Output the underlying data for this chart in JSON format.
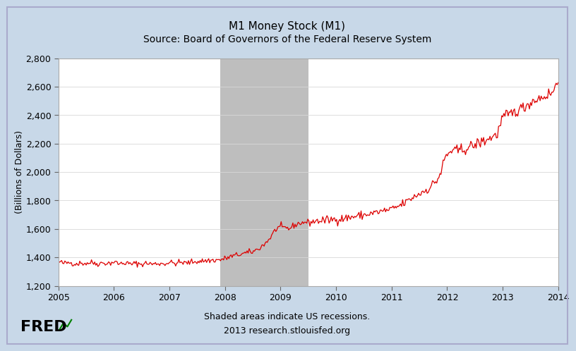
{
  "title_line1": "M1 Money Stock (M1)",
  "title_line2": "Source: Board of Governors of the Federal Reserve System",
  "ylabel": "(Billions of Dollars)",
  "xlabel_note1": "Shaded areas indicate US recessions.",
  "xlabel_note2": "2013 research.stlouisfed.org",
  "xlim_start": 2005.0,
  "xlim_end": 2014.0,
  "ylim_bottom": 1200,
  "ylim_top": 2800,
  "yticks": [
    1200,
    1400,
    1600,
    1800,
    2000,
    2200,
    2400,
    2600,
    2800
  ],
  "xticks": [
    2005,
    2006,
    2007,
    2008,
    2009,
    2010,
    2011,
    2012,
    2013,
    2014
  ],
  "recession_start": 2007.917,
  "recession_end": 2009.5,
  "line_color": "#dd0000",
  "recession_color": "#bebebe",
  "background_color": "#c8d8e8",
  "plot_bg_color": "#ffffff",
  "grid_color": "#d8d8d8",
  "title_fontsize": 11,
  "subtitle_fontsize": 10,
  "axis_label_fontsize": 9,
  "tick_fontsize": 9,
  "note_fontsize": 9,
  "fred_fontsize": 16,
  "key_points": [
    [
      2005.0,
      1370
    ],
    [
      2005.1,
      1358
    ],
    [
      2005.2,
      1365
    ],
    [
      2005.3,
      1355
    ],
    [
      2005.4,
      1360
    ],
    [
      2005.5,
      1358
    ],
    [
      2005.6,
      1365
    ],
    [
      2005.7,
      1355
    ],
    [
      2005.8,
      1362
    ],
    [
      2005.9,
      1358
    ],
    [
      2006.0,
      1368
    ],
    [
      2006.1,
      1355
    ],
    [
      2006.2,
      1362
    ],
    [
      2006.3,
      1352
    ],
    [
      2006.4,
      1358
    ],
    [
      2006.5,
      1353
    ],
    [
      2006.6,
      1360
    ],
    [
      2006.7,
      1352
    ],
    [
      2006.8,
      1358
    ],
    [
      2006.9,
      1355
    ],
    [
      2007.0,
      1365
    ],
    [
      2007.1,
      1358
    ],
    [
      2007.2,
      1365
    ],
    [
      2007.3,
      1360
    ],
    [
      2007.4,
      1368
    ],
    [
      2007.5,
      1372
    ],
    [
      2007.6,
      1375
    ],
    [
      2007.7,
      1378
    ],
    [
      2007.8,
      1380
    ],
    [
      2007.917,
      1383
    ],
    [
      2008.0,
      1392
    ],
    [
      2008.1,
      1405
    ],
    [
      2008.2,
      1415
    ],
    [
      2008.3,
      1425
    ],
    [
      2008.4,
      1432
    ],
    [
      2008.5,
      1440
    ],
    [
      2008.6,
      1460
    ],
    [
      2008.7,
      1490
    ],
    [
      2008.8,
      1530
    ],
    [
      2008.85,
      1560
    ],
    [
      2008.9,
      1590
    ],
    [
      2008.95,
      1610
    ],
    [
      2009.0,
      1615
    ],
    [
      2009.05,
      1605
    ],
    [
      2009.1,
      1610
    ],
    [
      2009.15,
      1600
    ],
    [
      2009.2,
      1615
    ],
    [
      2009.25,
      1625
    ],
    [
      2009.3,
      1635
    ],
    [
      2009.4,
      1645
    ],
    [
      2009.5,
      1648
    ],
    [
      2009.6,
      1652
    ],
    [
      2009.7,
      1658
    ],
    [
      2009.8,
      1660
    ],
    [
      2009.9,
      1665
    ],
    [
      2010.0,
      1668
    ],
    [
      2010.1,
      1672
    ],
    [
      2010.2,
      1678
    ],
    [
      2010.3,
      1685
    ],
    [
      2010.4,
      1692
    ],
    [
      2010.5,
      1698
    ],
    [
      2010.6,
      1705
    ],
    [
      2010.7,
      1715
    ],
    [
      2010.8,
      1722
    ],
    [
      2010.9,
      1730
    ],
    [
      2011.0,
      1738
    ],
    [
      2011.1,
      1755
    ],
    [
      2011.2,
      1775
    ],
    [
      2011.3,
      1800
    ],
    [
      2011.4,
      1825
    ],
    [
      2011.5,
      1848
    ],
    [
      2011.6,
      1870
    ],
    [
      2011.7,
      1895
    ],
    [
      2011.8,
      1935
    ],
    [
      2011.85,
      1965
    ],
    [
      2011.9,
      2010
    ],
    [
      2011.95,
      2090
    ],
    [
      2012.0,
      2120
    ],
    [
      2012.05,
      2140
    ],
    [
      2012.1,
      2155
    ],
    [
      2012.15,
      2145
    ],
    [
      2012.2,
      2150
    ],
    [
      2012.3,
      2160
    ],
    [
      2012.4,
      2175
    ],
    [
      2012.5,
      2190
    ],
    [
      2012.6,
      2210
    ],
    [
      2012.7,
      2225
    ],
    [
      2012.8,
      2245
    ],
    [
      2012.9,
      2265
    ],
    [
      2013.0,
      2385
    ],
    [
      2013.1,
      2400
    ],
    [
      2013.2,
      2420
    ],
    [
      2013.3,
      2440
    ],
    [
      2013.4,
      2460
    ],
    [
      2013.5,
      2490
    ],
    [
      2013.6,
      2510
    ],
    [
      2013.7,
      2525
    ],
    [
      2013.8,
      2540
    ],
    [
      2013.9,
      2560
    ],
    [
      2013.95,
      2600
    ],
    [
      2014.0,
      2640
    ]
  ]
}
